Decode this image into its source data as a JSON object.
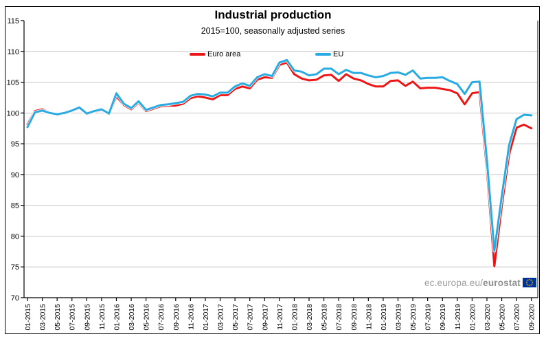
{
  "chart_data": {
    "type": "line",
    "title": "Industrial production",
    "subtitle": "2015=100, seasonally adjusted series",
    "ylim": [
      70,
      115
    ],
    "y_ticks": [
      70,
      75,
      80,
      85,
      90,
      95,
      100,
      105,
      110,
      115
    ],
    "grid": "horizontal",
    "legend_position": "top-center",
    "x": [
      "01-2015",
      "02-2015",
      "03-2015",
      "04-2015",
      "05-2015",
      "06-2015",
      "07-2015",
      "08-2015",
      "09-2015",
      "10-2015",
      "11-2015",
      "12-2015",
      "01-2016",
      "02-2016",
      "03-2016",
      "04-2016",
      "05-2016",
      "06-2016",
      "07-2016",
      "08-2016",
      "09-2016",
      "10-2016",
      "11-2016",
      "12-2016",
      "01-2017",
      "02-2017",
      "03-2017",
      "04-2017",
      "05-2017",
      "06-2017",
      "07-2017",
      "08-2017",
      "09-2017",
      "10-2017",
      "11-2017",
      "12-2017",
      "01-2018",
      "02-2018",
      "03-2018",
      "04-2018",
      "05-2018",
      "06-2018",
      "07-2018",
      "08-2018",
      "09-2018",
      "10-2018",
      "11-2018",
      "12-2018",
      "01-2019",
      "02-2019",
      "03-2019",
      "04-2019",
      "05-2019",
      "06-2019",
      "07-2019",
      "08-2019",
      "09-2019",
      "10-2019",
      "11-2019",
      "12-2019",
      "01-2020",
      "02-2020",
      "03-2020",
      "04-2020",
      "05-2020",
      "06-2020",
      "07-2020",
      "08-2020",
      "09-2020"
    ],
    "x_tick_labels": [
      "01-2015",
      "03-2015",
      "05-2015",
      "07-2015",
      "09-2015",
      "11-2015",
      "01-2016",
      "03-2016",
      "05-2016",
      "07-2016",
      "09-2016",
      "11-2016",
      "01-2017",
      "03-2017",
      "05-2017",
      "07-2017",
      "09-2017",
      "11-2017",
      "01-2018",
      "03-2018",
      "05-2018",
      "07-2018",
      "09-2018",
      "11-2018",
      "01-2019",
      "03-2019",
      "05-2019",
      "07-2019",
      "09-2019",
      "11-2019",
      "01-2020",
      "03-2020",
      "05-2020",
      "07-2020",
      "09-2020"
    ],
    "series": [
      {
        "name": "Euro area",
        "color": "#ed1515",
        "values": [
          98.1,
          100.3,
          100.6,
          100.0,
          99.7,
          99.9,
          100.3,
          100.8,
          99.8,
          100.2,
          100.5,
          99.8,
          102.7,
          101.3,
          100.6,
          101.7,
          100.3,
          100.7,
          101.1,
          101.2,
          101.2,
          101.5,
          102.4,
          102.7,
          102.5,
          102.2,
          102.9,
          102.9,
          103.9,
          104.3,
          104.0,
          105.4,
          105.8,
          105.7,
          107.8,
          108.2,
          106.3,
          105.6,
          105.3,
          105.4,
          106.1,
          106.2,
          105.2,
          106.3,
          105.6,
          105.3,
          104.7,
          104.3,
          104.3,
          105.2,
          105.3,
          104.4,
          105.1,
          104.0,
          104.1,
          104.1,
          103.9,
          103.7,
          103.2,
          101.4,
          103.2,
          103.4,
          90.8,
          75.1,
          84.9,
          93.3,
          97.6,
          98.1,
          97.5
        ]
      },
      {
        "name": "EU",
        "color": "#29abe2",
        "values": [
          97.7,
          100.1,
          100.4,
          100.0,
          99.8,
          100.0,
          100.4,
          100.9,
          99.9,
          100.3,
          100.6,
          99.9,
          103.2,
          101.5,
          100.8,
          101.9,
          100.5,
          100.9,
          101.3,
          101.4,
          101.6,
          101.8,
          102.8,
          103.1,
          103.0,
          102.7,
          103.3,
          103.3,
          104.3,
          104.8,
          104.4,
          105.8,
          106.3,
          106.0,
          108.2,
          108.6,
          106.9,
          106.7,
          106.1,
          106.3,
          107.2,
          107.2,
          106.3,
          107.0,
          106.5,
          106.5,
          106.1,
          105.8,
          106.0,
          106.5,
          106.6,
          106.2,
          106.9,
          105.6,
          105.7,
          105.7,
          105.8,
          105.2,
          104.7,
          103.1,
          105.0,
          105.1,
          92.3,
          77.6,
          86.5,
          94.8,
          99.0,
          99.7,
          99.6
        ]
      }
    ]
  },
  "watermark": {
    "prefix": "ec.europa.eu/",
    "bold": "eurostat"
  },
  "colors": {
    "gridline": "#c6c6c6",
    "axis": "#000000",
    "flag_blue": "#003399",
    "flag_stars": "#ffcc00"
  }
}
